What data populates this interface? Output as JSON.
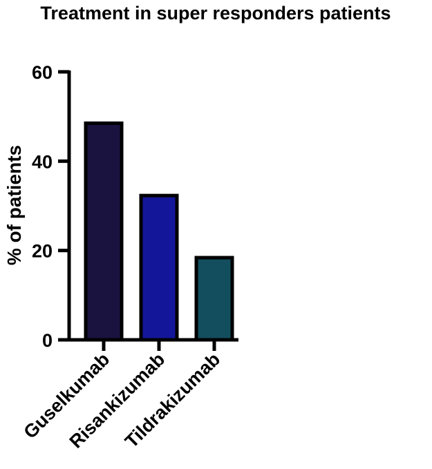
{
  "chart_data": {
    "type": "bar",
    "title": "Treatment in super responders patients",
    "xlabel": "",
    "ylabel": "% of patients",
    "categories": [
      "Guselkumab",
      "Risankizumab",
      "Tildrakizumab"
    ],
    "values": [
      48.5,
      32.3,
      18.4
    ],
    "colors": [
      "#1a1340",
      "#14169a",
      "#134e5e"
    ],
    "ylim": [
      0,
      60
    ],
    "yticks": [
      "0",
      "20",
      "40",
      "60"
    ],
    "grid": false,
    "legend": "none"
  }
}
